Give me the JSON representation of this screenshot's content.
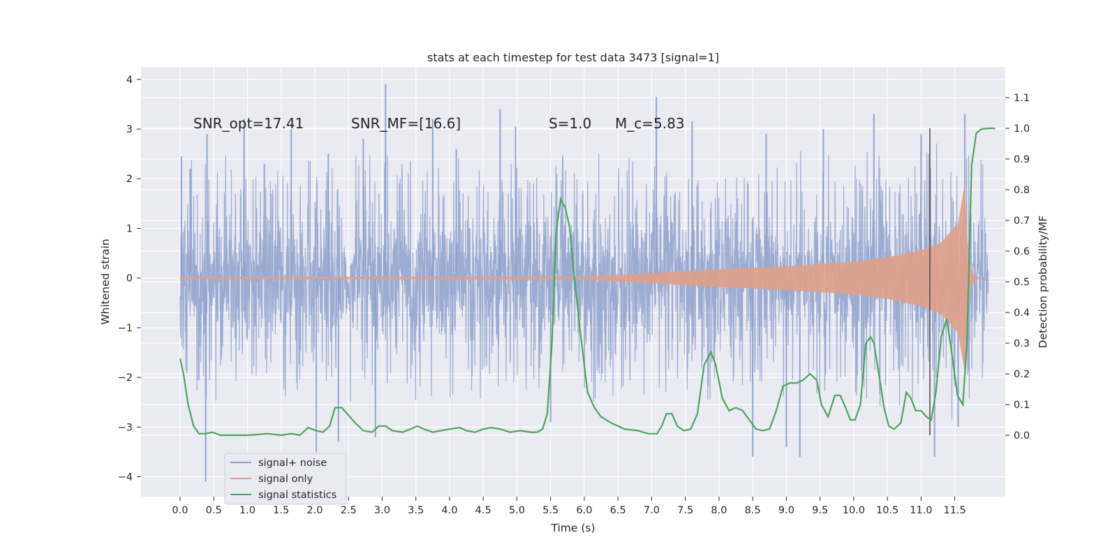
{
  "chart_data": {
    "type": "line",
    "title": "stats at each timestep for test data 3473 [signal=1]",
    "xlabel": "Time (s)",
    "ylabel_left": "Whitened strain",
    "ylabel_right": "Detection probability/MF",
    "xlim": [
      -0.58,
      12.25
    ],
    "ylim_left": [
      -4.4,
      4.25
    ],
    "ylim_right": [
      -0.2,
      1.2
    ],
    "x_ticks": [
      "0.0",
      "0.5",
      "1.0",
      "1.5",
      "2.0",
      "2.5",
      "3.0",
      "3.5",
      "4.0",
      "4.5",
      "5.0",
      "5.5",
      "6.0",
      "6.5",
      "7.0",
      "7.5",
      "8.0",
      "8.5",
      "9.0",
      "9.5",
      "10.0",
      "10.5",
      "11.0",
      "11.5"
    ],
    "y_ticks_left": [
      "4",
      "3",
      "2",
      "1",
      "0",
      "−1",
      "−2",
      "−3",
      "−4"
    ],
    "y_ticks_right": [
      "1.1",
      "1.0",
      "0.9",
      "0.8",
      "0.7",
      "0.6",
      "0.5",
      "0.4",
      "0.3",
      "0.2",
      "0.1",
      "0.0"
    ],
    "grid": true,
    "legend_placement": "lower-left",
    "annotations": [
      "SNR_opt=17.41",
      "SNR_MF=[16.6]",
      "S=1.0",
      "M_c=5.83"
    ],
    "vline_x": 11.13,
    "colors": {
      "noise": "#8da0cb",
      "signal": "#e0a08a",
      "stats": "#4aa55a",
      "background": "#eaeaf2",
      "grid": "#ffffff"
    },
    "series": [
      {
        "name": "signal+ noise",
        "axis": "left",
        "sample_rate_hz": 256,
        "duration_s": 12.0,
        "envelope_typical": 1.75,
        "spike_peaks": [
          {
            "t": 0.02,
            "v": 2.45
          },
          {
            "t": 0.15,
            "v": 2.2
          },
          {
            "t": 0.4,
            "v": 2.9
          },
          {
            "t": 0.95,
            "v": 3.2
          },
          {
            "t": 1.25,
            "v": 2.3
          },
          {
            "t": 1.65,
            "v": 3.0
          },
          {
            "t": 2.2,
            "v": 2.5
          },
          {
            "t": 2.72,
            "v": 2.8
          },
          {
            "t": 3.05,
            "v": 3.9
          },
          {
            "t": 3.75,
            "v": 3.2
          },
          {
            "t": 4.1,
            "v": 2.6
          },
          {
            "t": 4.75,
            "v": 3.4
          },
          {
            "t": 4.98,
            "v": 3.05
          },
          {
            "t": 7.07,
            "v": 3.65
          },
          {
            "t": 7.6,
            "v": 3.15
          },
          {
            "t": 8.7,
            "v": 2.9
          },
          {
            "t": 9.55,
            "v": 3.0
          },
          {
            "t": 10.3,
            "v": 3.3
          },
          {
            "t": 11.0,
            "v": 2.9
          },
          {
            "t": 11.65,
            "v": 3.3
          }
        ],
        "trough_peaks": [
          {
            "t": 0.38,
            "v": -4.1
          },
          {
            "t": 2.02,
            "v": -3.5
          },
          {
            "t": 2.35,
            "v": -3.3
          },
          {
            "t": 2.9,
            "v": -3.2
          },
          {
            "t": 5.5,
            "v": -2.9
          },
          {
            "t": 8.5,
            "v": -3.6
          },
          {
            "t": 9.0,
            "v": -3.4
          },
          {
            "t": 9.2,
            "v": -3.6
          },
          {
            "t": 11.2,
            "v": -3.6
          },
          {
            "t": 11.55,
            "v": -3.0
          }
        ]
      },
      {
        "name": "signal only",
        "axis": "left",
        "model": "chirp",
        "t_merge": 11.65,
        "envelope": [
          {
            "t": 0.0,
            "v": 0.02
          },
          {
            "t": 6.0,
            "v": 0.03
          },
          {
            "t": 7.0,
            "v": 0.1
          },
          {
            "t": 8.0,
            "v": 0.18
          },
          {
            "t": 9.0,
            "v": 0.24
          },
          {
            "t": 10.0,
            "v": 0.33
          },
          {
            "t": 10.5,
            "v": 0.42
          },
          {
            "t": 11.0,
            "v": 0.56
          },
          {
            "t": 11.3,
            "v": 0.72
          },
          {
            "t": 11.55,
            "v": 1.1
          },
          {
            "t": 11.65,
            "v": 1.9
          }
        ]
      },
      {
        "name": "signal statistics",
        "axis": "right",
        "points": [
          [
            0.0,
            0.25
          ],
          [
            0.05,
            0.2
          ],
          [
            0.12,
            0.1
          ],
          [
            0.2,
            0.03
          ],
          [
            0.28,
            0.005
          ],
          [
            0.38,
            0.005
          ],
          [
            0.48,
            0.01
          ],
          [
            0.6,
            0.0
          ],
          [
            1.0,
            0.0
          ],
          [
            1.3,
            0.005
          ],
          [
            1.5,
            0.0
          ],
          [
            1.65,
            0.005
          ],
          [
            1.78,
            0.0
          ],
          [
            1.9,
            0.025
          ],
          [
            2.02,
            0.015
          ],
          [
            2.12,
            0.01
          ],
          [
            2.22,
            0.03
          ],
          [
            2.3,
            0.09
          ],
          [
            2.4,
            0.09
          ],
          [
            2.48,
            0.07
          ],
          [
            2.6,
            0.04
          ],
          [
            2.72,
            0.015
          ],
          [
            2.85,
            0.01
          ],
          [
            2.95,
            0.03
          ],
          [
            3.05,
            0.03
          ],
          [
            3.15,
            0.015
          ],
          [
            3.3,
            0.01
          ],
          [
            3.42,
            0.02
          ],
          [
            3.52,
            0.03
          ],
          [
            3.62,
            0.02
          ],
          [
            3.75,
            0.01
          ],
          [
            4.0,
            0.02
          ],
          [
            4.15,
            0.025
          ],
          [
            4.25,
            0.015
          ],
          [
            4.38,
            0.01
          ],
          [
            4.5,
            0.02
          ],
          [
            4.62,
            0.025
          ],
          [
            4.75,
            0.02
          ],
          [
            4.9,
            0.01
          ],
          [
            5.05,
            0.015
          ],
          [
            5.2,
            0.01
          ],
          [
            5.3,
            0.01
          ],
          [
            5.38,
            0.02
          ],
          [
            5.45,
            0.07
          ],
          [
            5.52,
            0.3
          ],
          [
            5.58,
            0.66
          ],
          [
            5.65,
            0.77
          ],
          [
            5.72,
            0.74
          ],
          [
            5.78,
            0.68
          ],
          [
            5.85,
            0.52
          ],
          [
            5.95,
            0.32
          ],
          [
            6.05,
            0.14
          ],
          [
            6.15,
            0.09
          ],
          [
            6.25,
            0.06
          ],
          [
            6.4,
            0.04
          ],
          [
            6.6,
            0.02
          ],
          [
            6.8,
            0.015
          ],
          [
            6.95,
            0.005
          ],
          [
            7.08,
            0.005
          ],
          [
            7.15,
            0.03
          ],
          [
            7.22,
            0.07
          ],
          [
            7.3,
            0.07
          ],
          [
            7.38,
            0.03
          ],
          [
            7.48,
            0.015
          ],
          [
            7.58,
            0.02
          ],
          [
            7.68,
            0.07
          ],
          [
            7.78,
            0.23
          ],
          [
            7.88,
            0.27
          ],
          [
            7.95,
            0.23
          ],
          [
            8.05,
            0.12
          ],
          [
            8.15,
            0.08
          ],
          [
            8.25,
            0.09
          ],
          [
            8.35,
            0.08
          ],
          [
            8.45,
            0.05
          ],
          [
            8.55,
            0.02
          ],
          [
            8.65,
            0.015
          ],
          [
            8.75,
            0.02
          ],
          [
            8.85,
            0.08
          ],
          [
            8.95,
            0.16
          ],
          [
            9.05,
            0.17
          ],
          [
            9.15,
            0.17
          ],
          [
            9.25,
            0.18
          ],
          [
            9.35,
            0.2
          ],
          [
            9.45,
            0.18
          ],
          [
            9.52,
            0.1
          ],
          [
            9.62,
            0.06
          ],
          [
            9.72,
            0.13
          ],
          [
            9.8,
            0.13
          ],
          [
            9.88,
            0.09
          ],
          [
            9.95,
            0.05
          ],
          [
            10.02,
            0.05
          ],
          [
            10.1,
            0.1
          ],
          [
            10.18,
            0.3
          ],
          [
            10.25,
            0.32
          ],
          [
            10.3,
            0.3
          ],
          [
            10.38,
            0.19
          ],
          [
            10.45,
            0.09
          ],
          [
            10.52,
            0.03
          ],
          [
            10.6,
            0.02
          ],
          [
            10.7,
            0.04
          ],
          [
            10.78,
            0.14
          ],
          [
            10.85,
            0.12
          ],
          [
            10.92,
            0.08
          ],
          [
            11.0,
            0.08
          ],
          [
            11.08,
            0.06
          ],
          [
            11.15,
            0.05
          ],
          [
            11.22,
            0.14
          ],
          [
            11.3,
            0.32
          ],
          [
            11.38,
            0.38
          ],
          [
            11.46,
            0.26
          ],
          [
            11.54,
            0.13
          ],
          [
            11.62,
            0.1
          ],
          [
            11.68,
            0.3
          ],
          [
            11.75,
            0.88
          ],
          [
            11.82,
            0.985
          ],
          [
            11.9,
            0.998
          ],
          [
            12.0,
            1.0
          ],
          [
            12.1,
            1.0
          ]
        ]
      }
    ]
  }
}
